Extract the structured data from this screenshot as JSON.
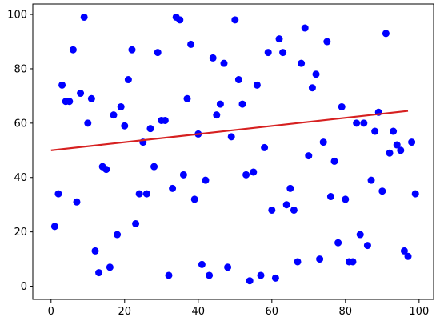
{
  "chart_data": {
    "type": "scatter",
    "title": "",
    "xlabel": "",
    "ylabel": "",
    "xlim": [
      -4.95,
      103.95
    ],
    "ylim": [
      -4.85,
      103.85
    ],
    "xticks": [
      0,
      20,
      40,
      60,
      80,
      100
    ],
    "yticks": [
      0,
      20,
      40,
      60,
      80,
      100
    ],
    "grid": false,
    "legend": "none",
    "point_color": "#0000ff",
    "line_color": "#d62020",
    "series": [
      {
        "type": "scatter",
        "x": [
          1,
          2,
          3,
          4,
          5,
          6,
          7,
          8,
          9,
          10,
          11,
          12,
          13,
          14,
          15,
          16,
          17,
          18,
          19,
          20,
          21,
          22,
          23,
          24,
          25,
          26,
          27,
          28,
          29,
          30,
          31,
          32,
          33,
          34,
          35,
          36,
          37,
          38,
          39,
          40,
          41,
          42,
          43,
          44,
          45,
          46,
          47,
          48,
          49,
          50,
          51,
          52,
          53,
          54,
          55,
          56,
          57,
          58,
          59,
          60,
          61,
          62,
          63,
          64,
          65,
          66,
          67,
          68,
          69,
          70,
          71,
          72,
          73,
          74,
          75,
          76,
          77,
          78,
          79,
          80,
          81,
          82,
          83,
          84,
          85,
          86,
          87,
          88,
          89,
          90,
          91,
          92,
          93,
          94,
          95,
          96,
          97,
          98,
          99
        ],
        "y": [
          22,
          34,
          74,
          68,
          68,
          87,
          31,
          71,
          99,
          60,
          69,
          13,
          5,
          44,
          43,
          7,
          63,
          19,
          66,
          59,
          76,
          87,
          23,
          34,
          53,
          34,
          58,
          44,
          86,
          61,
          61,
          4,
          36,
          99,
          98,
          41,
          69,
          89,
          32,
          56,
          8,
          39,
          4,
          84,
          63,
          67,
          82,
          7,
          55,
          98,
          76,
          67,
          41,
          2,
          42,
          74,
          4,
          51,
          86,
          28,
          3,
          91,
          86,
          30,
          36,
          28,
          9,
          82,
          95,
          48,
          73,
          78,
          10,
          53,
          90,
          33,
          46,
          16,
          66,
          32,
          9,
          9,
          60,
          19,
          60,
          15,
          39,
          57,
          64,
          35,
          93,
          49,
          57,
          52,
          50,
          13,
          11,
          53,
          34
        ]
      },
      {
        "type": "line",
        "x": [
          0,
          97
        ],
        "y": [
          50,
          64.5
        ]
      }
    ]
  }
}
